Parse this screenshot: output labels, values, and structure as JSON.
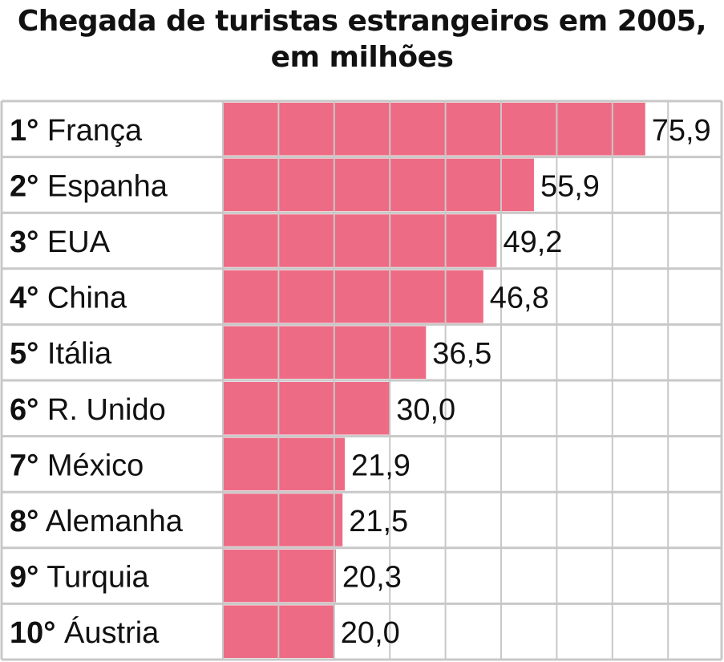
{
  "chart_data": {
    "type": "bar",
    "orientation": "horizontal",
    "title": "Chegada de turistas estrangeiros em 2005, em milhões",
    "ranks": [
      "1°",
      "2°",
      "3°",
      "4°",
      "5°",
      "6°",
      "7°",
      "8°",
      "9°",
      "10°"
    ],
    "categories": [
      "França",
      "Espanha",
      "EUA",
      "China",
      "Itália",
      "R. Unido",
      "México",
      "Alemanha",
      "Turquia",
      "Áustria"
    ],
    "values": [
      75.9,
      55.9,
      49.2,
      46.8,
      36.5,
      30.0,
      21.9,
      21.5,
      20.3,
      20.0
    ],
    "value_labels": [
      "75,9",
      "55,9",
      "49,2",
      "46,8",
      "36,5",
      "30,0",
      "21,9",
      "21,5",
      "20,3",
      "20,0"
    ],
    "xlim": [
      0,
      90
    ],
    "grid": true,
    "bar_color": "#ee6b85",
    "grid_color": "#c8c8c8"
  }
}
